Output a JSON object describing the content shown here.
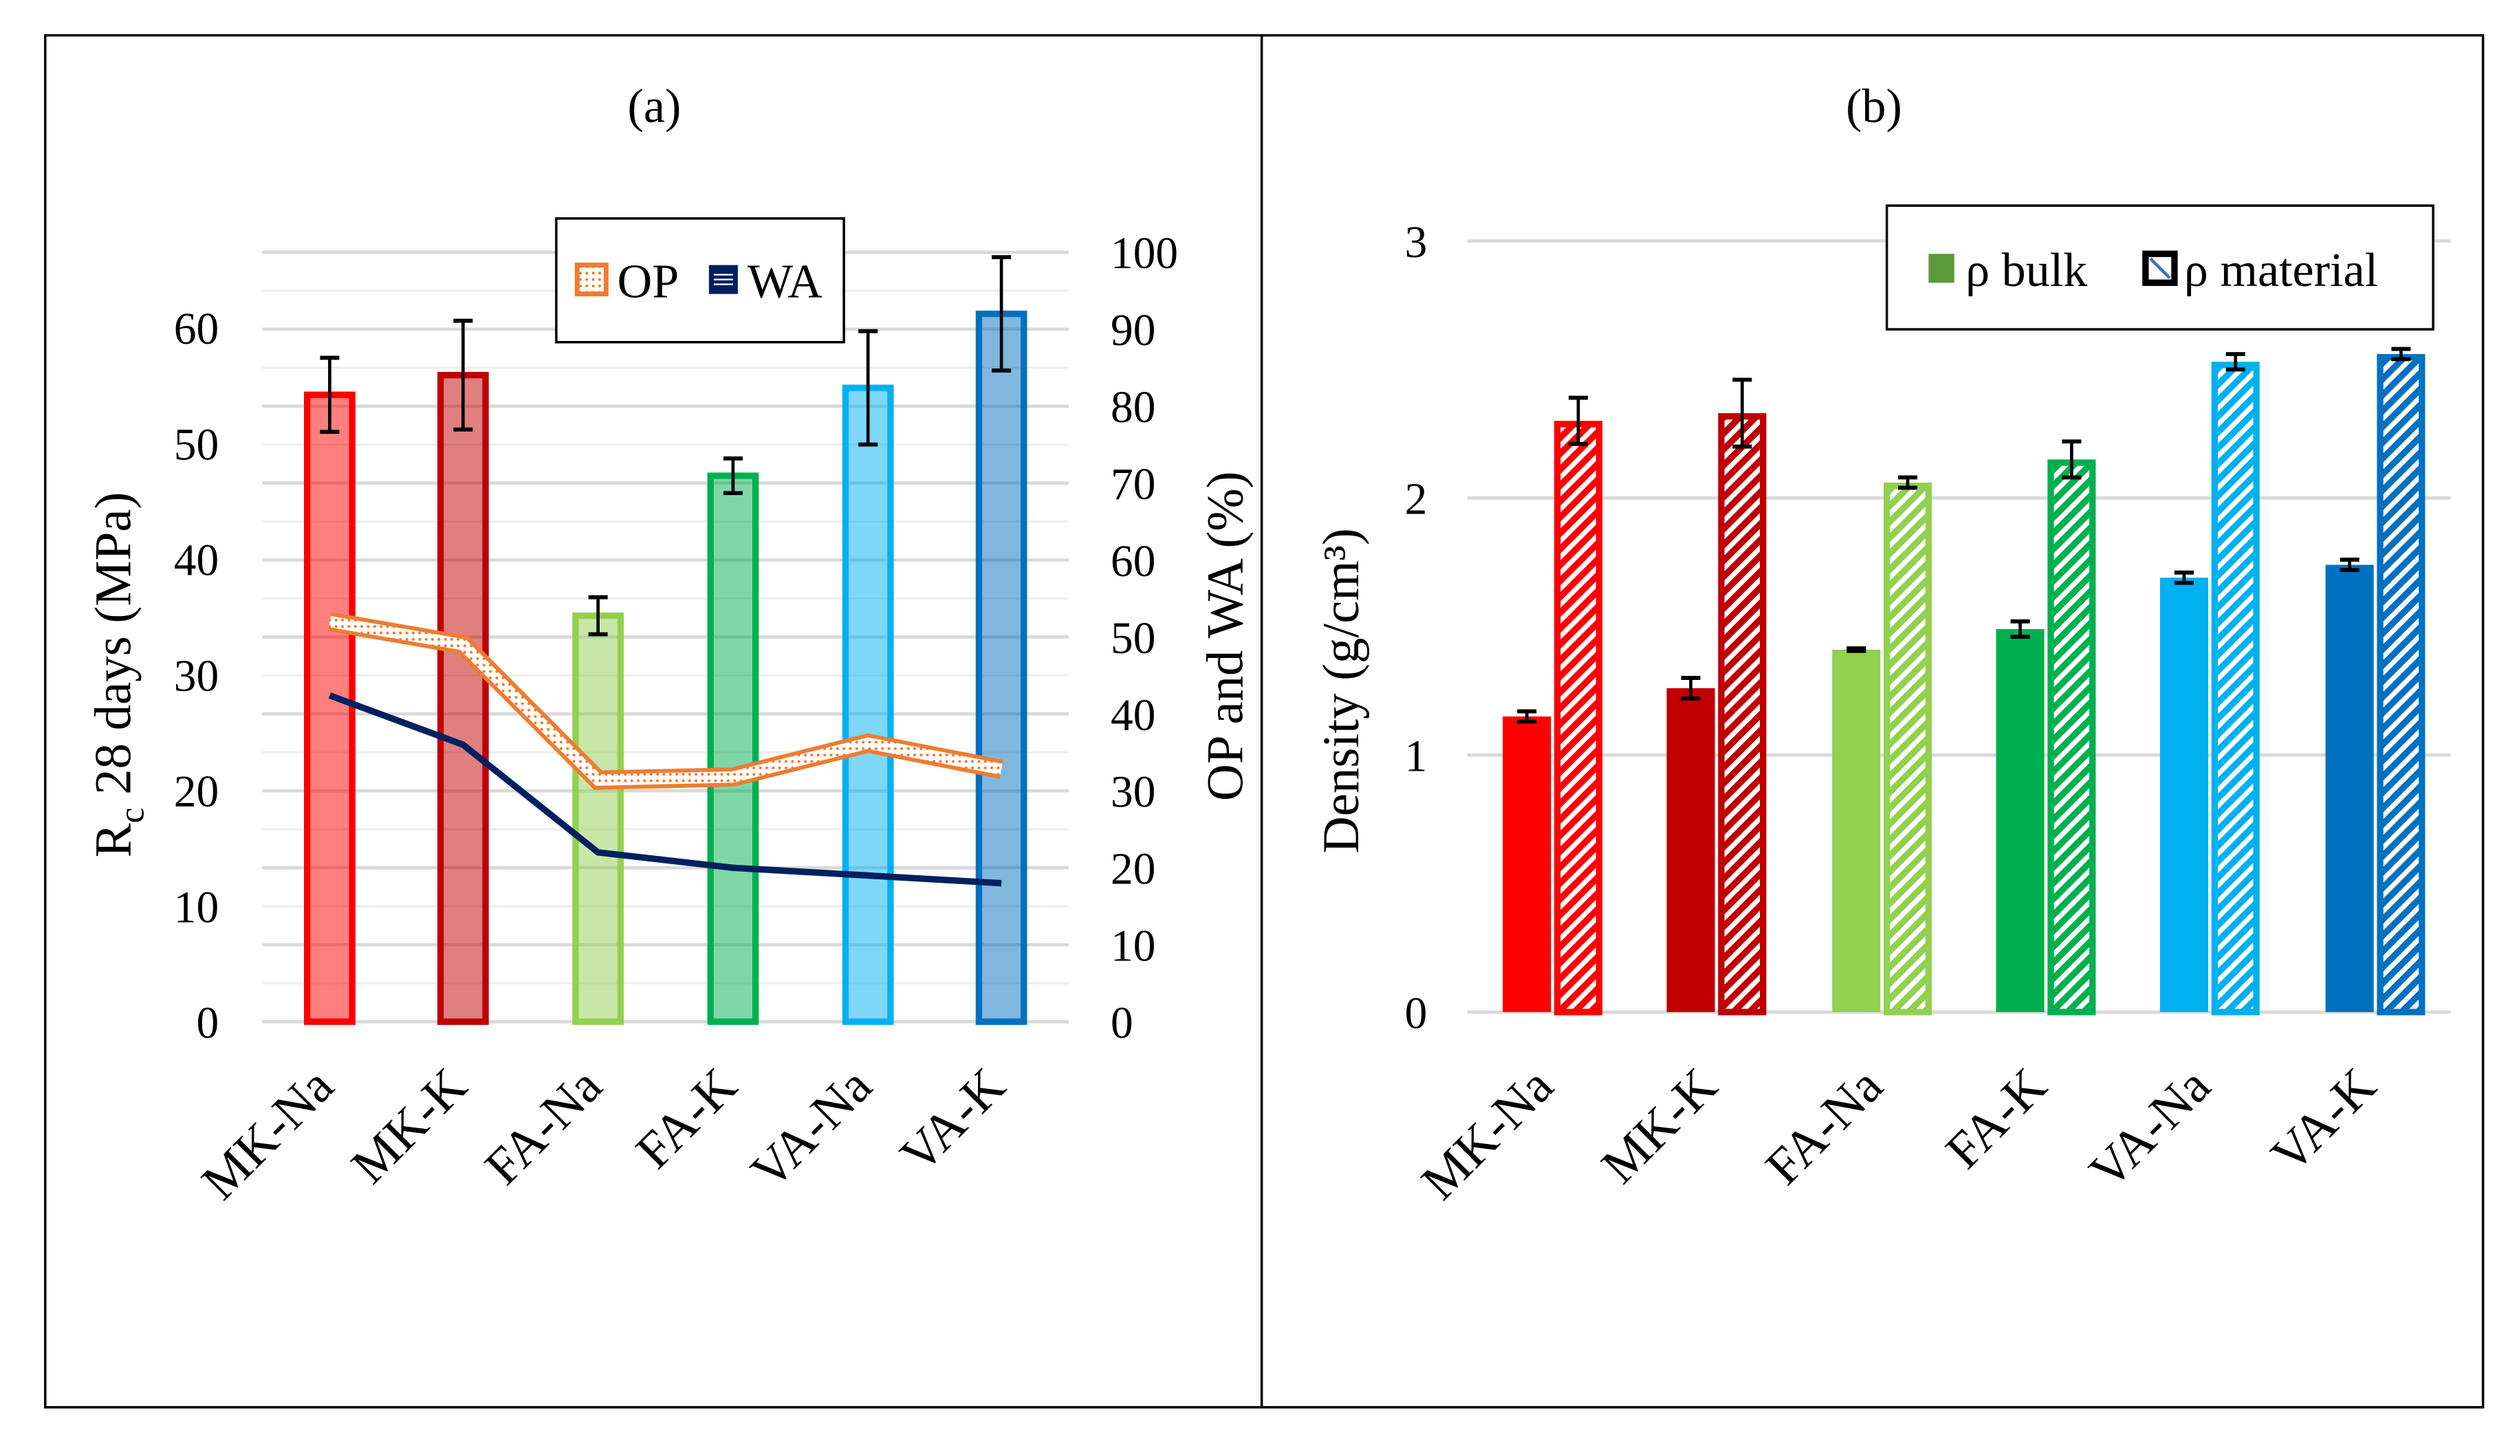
{
  "chart_data": [
    {
      "type": "bar",
      "title": "(a)",
      "categories": [
        "MK-Na",
        "MK-K",
        "FA-Na",
        "FA-K",
        "VA-Na",
        "VA-K"
      ],
      "ylabel": "Rc 28 days (MPa)",
      "ylabel_main": "R",
      "ylabel_sub": "c",
      "ylabel_rest": " 28 days (MPa)",
      "y2label": "OP and WA (%)",
      "ylim": [
        0,
        67
      ],
      "y2lim": [
        0,
        100
      ],
      "yticks": [
        "0",
        "10",
        "20",
        "30",
        "40",
        "50",
        "60"
      ],
      "y2ticks": [
        "0",
        "10",
        "20",
        "30",
        "40",
        "50",
        "60",
        "70",
        "80",
        "90",
        "100"
      ],
      "grid": true,
      "bar_series": {
        "name": "Rc 28 days",
        "values": [
          54.2,
          55.9,
          35.1,
          47.2,
          54.8,
          61.2
        ],
        "errors": [
          3.2,
          4.7,
          1.6,
          1.5,
          4.9,
          4.9
        ],
        "colors": [
          "#ff0000",
          "#c00000",
          "#92d050",
          "#00b050",
          "#00b0f0",
          "#0070c0"
        ]
      },
      "line_series": [
        {
          "name": "OP",
          "axis": "right",
          "values": [
            52,
            49,
            31.4,
            31.8,
            36.2,
            32.8
          ],
          "color": "#ed7d31"
        },
        {
          "name": "WA",
          "axis": "right",
          "values": [
            42.4,
            36,
            22,
            20,
            19,
            18
          ],
          "color": "#002060"
        }
      ],
      "legend": {
        "position": "top-center",
        "items": [
          "OP",
          "WA"
        ]
      }
    },
    {
      "type": "bar",
      "title": "(b)",
      "categories": [
        "MK-Na",
        "MK-K",
        "FA-Na",
        "FA-K",
        "VA-Na",
        "VA-K"
      ],
      "ylabel": "Density (g/cm³)",
      "ylim": [
        0,
        3
      ],
      "yticks": [
        "0",
        "1",
        "2",
        "3"
      ],
      "grid": true,
      "colors": [
        "#ff0000",
        "#c00000",
        "#92d050",
        "#00b050",
        "#00b0f0",
        "#0070c0"
      ],
      "series": [
        {
          "name": "ρ bulk",
          "values": [
            1.15,
            1.26,
            1.41,
            1.49,
            1.69,
            1.74
          ],
          "errors": [
            0.02,
            0.04,
            0.005,
            0.03,
            0.02,
            0.02
          ]
        },
        {
          "name": "ρ material",
          "values": [
            2.3,
            2.33,
            2.06,
            2.15,
            2.53,
            2.56
          ],
          "errors": [
            0.09,
            0.13,
            0.02,
            0.07,
            0.03,
            0.02
          ]
        }
      ],
      "legend": {
        "position": "top-right",
        "items": [
          "ρ bulk",
          "ρ material"
        ]
      }
    }
  ]
}
